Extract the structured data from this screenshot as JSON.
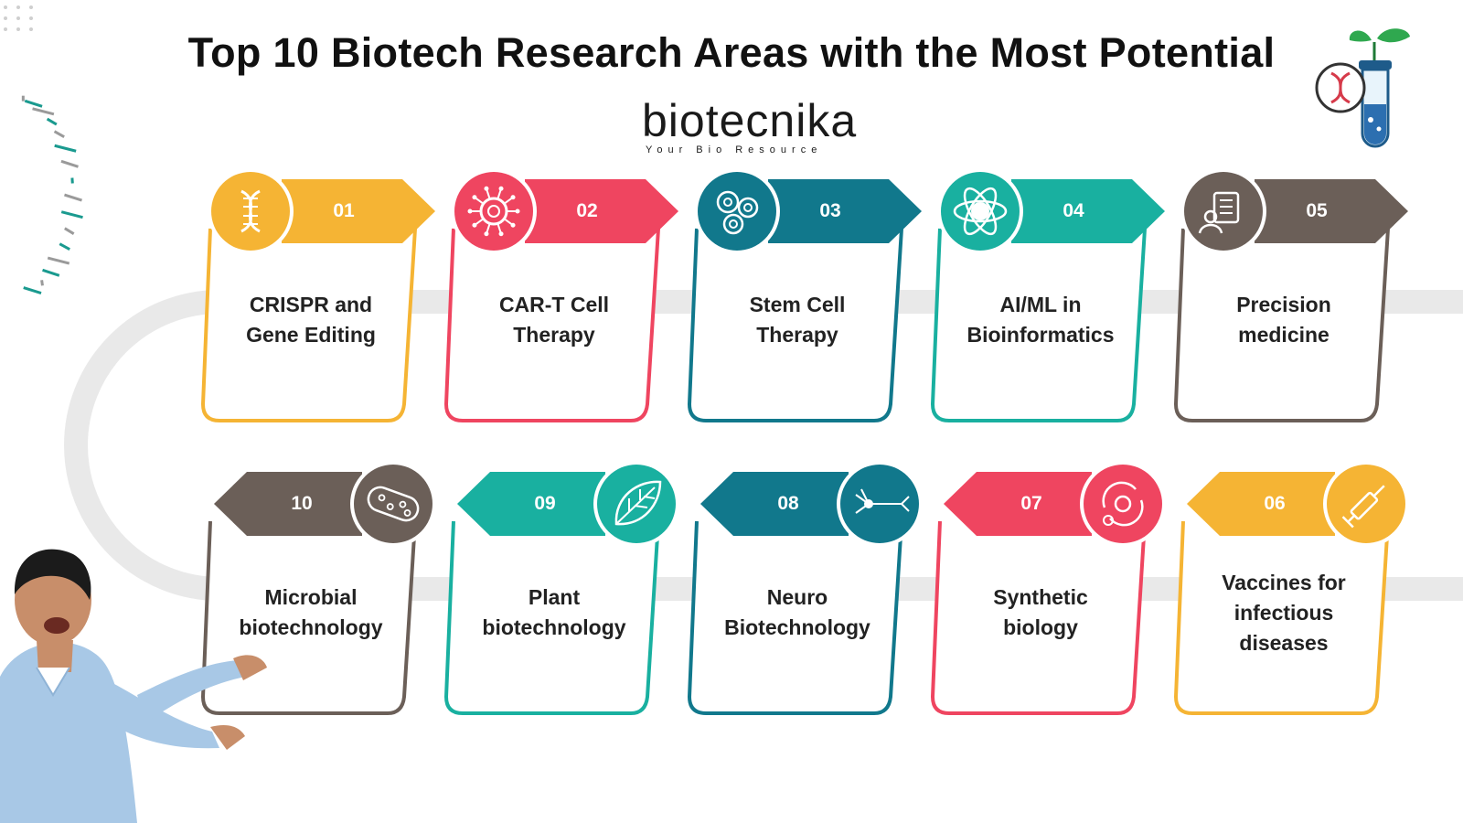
{
  "title": "Top 10 Biotech Research Areas with the Most Potential",
  "logo": {
    "wordmark": "biotecnika",
    "tagline": "Your Bio Resource"
  },
  "colors": {
    "yellow": "#f5b434",
    "red": "#ef4560",
    "blue": "#11788c",
    "teal": "#19b0a0",
    "brown": "#6b5f58",
    "track": "#e9e9e9"
  },
  "areas": [
    {
      "number": "01",
      "label": "CRISPR and Gene Editing",
      "lines": [
        "CRISPR and",
        "Gene Editing"
      ],
      "color": "#f5b434",
      "icon": "dna-icon"
    },
    {
      "number": "02",
      "label": "CAR-T Cell Therapy",
      "lines": [
        "CAR-T Cell",
        "Therapy"
      ],
      "color": "#ef4560",
      "icon": "t-cell-icon"
    },
    {
      "number": "03",
      "label": "Stem Cell Therapy",
      "lines": [
        "Stem Cell",
        "Therapy"
      ],
      "color": "#11788c",
      "icon": "stem-cells-icon"
    },
    {
      "number": "04",
      "label": "AI/ML in Bioinformatics",
      "lines": [
        "AI/ML in",
        "Bioinformatics"
      ],
      "color": "#19b0a0",
      "icon": "ai-atom-icon"
    },
    {
      "number": "05",
      "label": "Precision medicine",
      "lines": [
        "Precision",
        "medicine"
      ],
      "color": "#6b5f58",
      "icon": "medical-record-icon"
    },
    {
      "number": "06",
      "label": "Vaccines for infectious diseases",
      "lines": [
        "Vaccines for",
        "infectious",
        "diseases"
      ],
      "color": "#f5b434",
      "icon": "syringe-icon"
    },
    {
      "number": "07",
      "label": "Synthetic biology",
      "lines": [
        "Synthetic",
        "biology"
      ],
      "color": "#ef4560",
      "icon": "synthetic-cycle-icon"
    },
    {
      "number": "08",
      "label": "Neuro Biotechnology",
      "lines": [
        "Neuro",
        "Biotechnology"
      ],
      "color": "#11788c",
      "icon": "neuron-icon"
    },
    {
      "number": "09",
      "label": "Plant biotechnology",
      "lines": [
        "Plant",
        "biotechnology"
      ],
      "color": "#19b0a0",
      "icon": "leaf-icon"
    },
    {
      "number": "10",
      "label": "Microbial biotechnology",
      "lines": [
        "Microbial",
        "biotechnology"
      ],
      "color": "#6b5f58",
      "icon": "bacterium-icon"
    }
  ]
}
